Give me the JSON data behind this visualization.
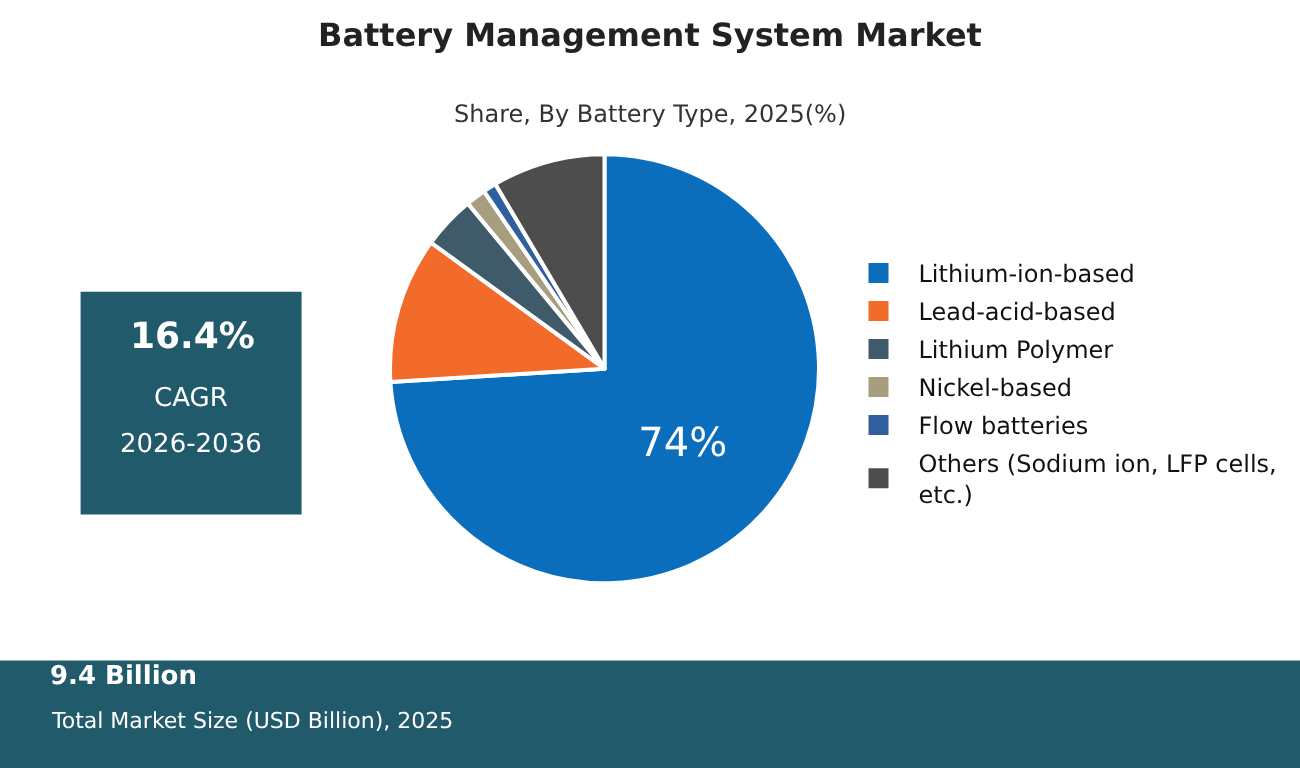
{
  "chart_data": {
    "type": "pie",
    "title": "Battery Management System Market",
    "subtitle": "Share, By Battery Type, 2025(%)",
    "categories": [
      "Lithium-ion-based",
      "Lead-acid-based",
      "Lithium Polymer",
      "Nickel-based",
      "Flow batteries",
      "Others (Sodium ion, LFP cells, etc.)"
    ],
    "values": [
      74,
      11,
      4,
      1.5,
      1,
      8.5
    ],
    "colors": [
      "#0a6ebd",
      "#f26b2a",
      "#3f5b6a",
      "#a79d7f",
      "#2f5f9e",
      "#4d4d4d"
    ],
    "value_labels": [
      "74%",
      null,
      null,
      null,
      null,
      null
    ],
    "legend": "right",
    "annotations": [
      "16.4%",
      "CAGR",
      "2026-2036",
      "9.4 Billion",
      "Total Market Size (USD Billion), 2025"
    ]
  }
}
